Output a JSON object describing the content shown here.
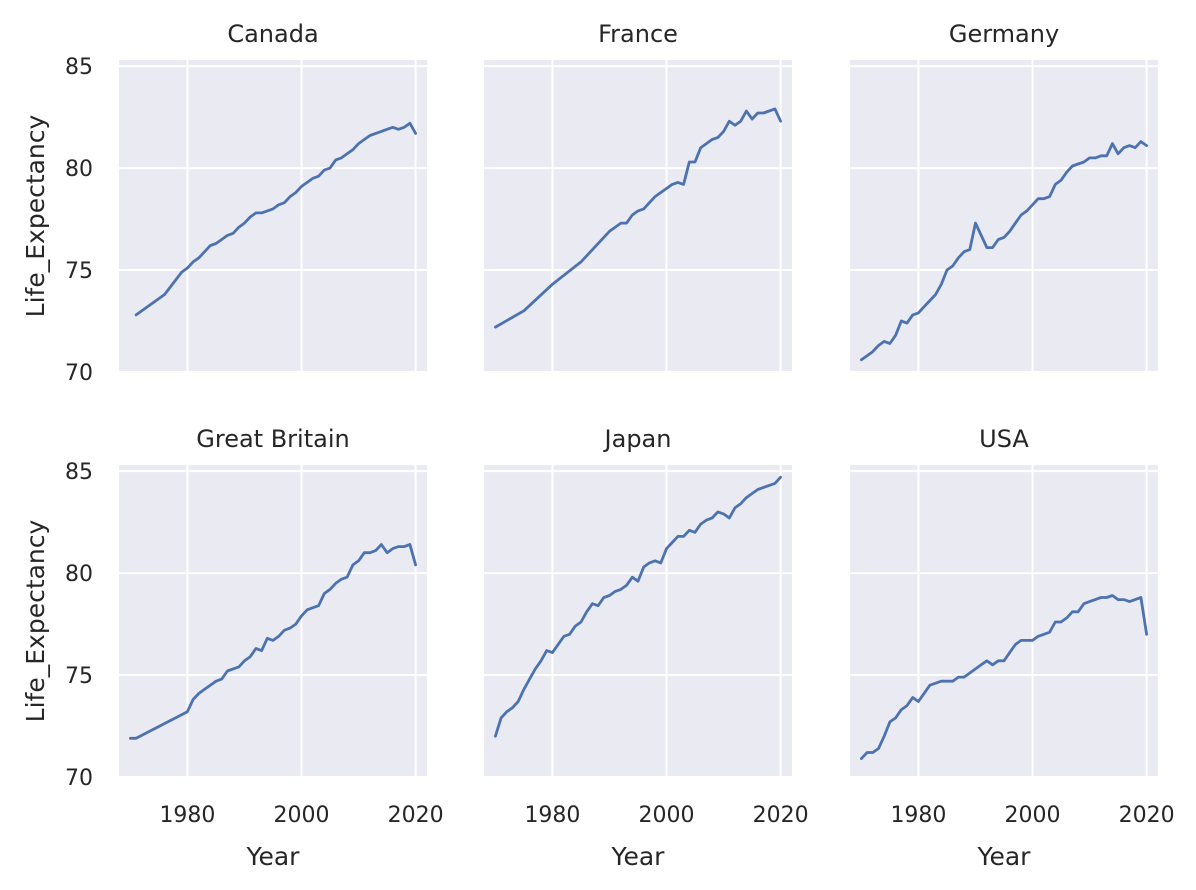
{
  "chart_data": {
    "type": "line",
    "layout": "facet-grid",
    "rows": 2,
    "cols": 3,
    "xlabel": "Year",
    "ylabel": "Life_Expectancy",
    "xticks": [
      1980,
      2000,
      2020
    ],
    "yticks": [
      70,
      75,
      80,
      85
    ],
    "xlim": [
      1968,
      2022
    ],
    "ylim": [
      70,
      85.3
    ],
    "grid": true,
    "colors": {
      "series": "#4c72b0",
      "panel_background": "#eaeaf2",
      "grid": "#ffffff"
    },
    "panels": [
      {
        "name": "Canada",
        "x": [
          1971,
          1976,
          1979,
          1980,
          1981,
          1982,
          1983,
          1984,
          1985,
          1986,
          1987,
          1988,
          1989,
          1990,
          1991,
          1992,
          1993,
          1994,
          1995,
          1996,
          1997,
          1998,
          1999,
          2000,
          2001,
          2002,
          2003,
          2004,
          2005,
          2006,
          2007,
          2008,
          2009,
          2010,
          2011,
          2012,
          2013,
          2014,
          2015,
          2016,
          2017,
          2018,
          2019,
          2020
        ],
        "y": [
          72.8,
          73.8,
          74.9,
          75.1,
          75.4,
          75.6,
          75.9,
          76.2,
          76.3,
          76.5,
          76.7,
          76.8,
          77.1,
          77.3,
          77.6,
          77.8,
          77.8,
          77.9,
          78.0,
          78.2,
          78.3,
          78.6,
          78.8,
          79.1,
          79.3,
          79.5,
          79.6,
          79.9,
          80.0,
          80.4,
          80.5,
          80.7,
          80.9,
          81.2,
          81.4,
          81.6,
          81.7,
          81.8,
          81.9,
          82.0,
          81.9,
          82.0,
          82.2,
          81.7
        ]
      },
      {
        "name": "France",
        "x": [
          1970,
          1975,
          1980,
          1985,
          1990,
          1991,
          1992,
          1993,
          1994,
          1995,
          1996,
          1997,
          1998,
          1999,
          2000,
          2001,
          2002,
          2003,
          2004,
          2005,
          2006,
          2007,
          2008,
          2009,
          2010,
          2011,
          2012,
          2013,
          2014,
          2015,
          2016,
          2017,
          2018,
          2019,
          2020
        ],
        "y": [
          72.2,
          73.0,
          74.3,
          75.4,
          76.9,
          77.1,
          77.3,
          77.3,
          77.7,
          77.9,
          78.0,
          78.3,
          78.6,
          78.8,
          79.0,
          79.2,
          79.3,
          79.2,
          80.3,
          80.3,
          81.0,
          81.2,
          81.4,
          81.5,
          81.8,
          82.3,
          82.1,
          82.3,
          82.8,
          82.4,
          82.7,
          82.7,
          82.8,
          82.9,
          82.3
        ]
      },
      {
        "name": "Germany",
        "x": [
          1970,
          1971,
          1972,
          1973,
          1974,
          1975,
          1976,
          1977,
          1978,
          1979,
          1980,
          1981,
          1982,
          1983,
          1984,
          1985,
          1986,
          1987,
          1988,
          1989,
          1990,
          1991,
          1992,
          1993,
          1994,
          1995,
          1996,
          1997,
          1998,
          1999,
          2000,
          2001,
          2002,
          2003,
          2004,
          2005,
          2006,
          2007,
          2008,
          2009,
          2010,
          2011,
          2012,
          2013,
          2014,
          2015,
          2016,
          2017,
          2018,
          2019,
          2020
        ],
        "y": [
          70.6,
          70.8,
          71.0,
          71.3,
          71.5,
          71.4,
          71.8,
          72.5,
          72.4,
          72.8,
          72.9,
          73.2,
          73.5,
          73.8,
          74.3,
          75.0,
          75.2,
          75.6,
          75.9,
          76.0,
          77.3,
          76.7,
          76.1,
          76.1,
          76.5,
          76.6,
          76.9,
          77.3,
          77.7,
          77.9,
          78.2,
          78.5,
          78.5,
          78.6,
          79.2,
          79.4,
          79.8,
          80.1,
          80.2,
          80.3,
          80.5,
          80.5,
          80.6,
          80.6,
          81.2,
          80.7,
          81.0,
          81.1,
          81.0,
          81.3,
          81.1
        ]
      },
      {
        "name": "Great Britain",
        "x": [
          1970,
          1971,
          1980,
          1981,
          1982,
          1983,
          1984,
          1985,
          1986,
          1987,
          1988,
          1989,
          1990,
          1991,
          1992,
          1993,
          1994,
          1995,
          1996,
          1997,
          1998,
          1999,
          2000,
          2001,
          2002,
          2003,
          2004,
          2005,
          2006,
          2007,
          2008,
          2009,
          2010,
          2011,
          2012,
          2013,
          2014,
          2015,
          2016,
          2017,
          2018,
          2019,
          2020
        ],
        "y": [
          71.9,
          71.9,
          73.2,
          73.8,
          74.1,
          74.3,
          74.5,
          74.7,
          74.8,
          75.2,
          75.3,
          75.4,
          75.7,
          75.9,
          76.3,
          76.2,
          76.8,
          76.7,
          76.9,
          77.2,
          77.3,
          77.5,
          77.9,
          78.2,
          78.3,
          78.4,
          79.0,
          79.2,
          79.5,
          79.7,
          79.8,
          80.4,
          80.6,
          81.0,
          81.0,
          81.1,
          81.4,
          81.0,
          81.2,
          81.3,
          81.3,
          81.4,
          80.4
        ]
      },
      {
        "name": "Japan",
        "x": [
          1970,
          1971,
          1972,
          1973,
          1974,
          1975,
          1976,
          1977,
          1978,
          1979,
          1980,
          1981,
          1982,
          1983,
          1984,
          1985,
          1986,
          1987,
          1988,
          1989,
          1990,
          1991,
          1992,
          1993,
          1994,
          1995,
          1996,
          1997,
          1998,
          1999,
          2000,
          2001,
          2002,
          2003,
          2004,
          2005,
          2006,
          2007,
          2008,
          2009,
          2010,
          2011,
          2012,
          2013,
          2014,
          2015,
          2016,
          2017,
          2018,
          2019,
          2020
        ],
        "y": [
          72.0,
          72.9,
          73.2,
          73.4,
          73.7,
          74.3,
          74.8,
          75.3,
          75.7,
          76.2,
          76.1,
          76.5,
          76.9,
          77.0,
          77.4,
          77.6,
          78.1,
          78.5,
          78.4,
          78.8,
          78.9,
          79.1,
          79.2,
          79.4,
          79.8,
          79.6,
          80.3,
          80.5,
          80.6,
          80.5,
          81.2,
          81.5,
          81.8,
          81.8,
          82.1,
          82.0,
          82.4,
          82.6,
          82.7,
          83.0,
          82.9,
          82.7,
          83.2,
          83.4,
          83.7,
          83.9,
          84.1,
          84.2,
          84.3,
          84.4,
          84.7
        ]
      },
      {
        "name": "USA",
        "x": [
          1970,
          1971,
          1972,
          1973,
          1974,
          1975,
          1976,
          1977,
          1978,
          1979,
          1980,
          1981,
          1982,
          1983,
          1984,
          1985,
          1986,
          1987,
          1988,
          1989,
          1990,
          1991,
          1992,
          1993,
          1994,
          1995,
          1996,
          1997,
          1998,
          1999,
          2000,
          2001,
          2002,
          2003,
          2004,
          2005,
          2006,
          2007,
          2008,
          2009,
          2010,
          2011,
          2012,
          2013,
          2014,
          2015,
          2016,
          2017,
          2018,
          2019,
          2020
        ],
        "y": [
          70.9,
          71.2,
          71.2,
          71.4,
          72.0,
          72.7,
          72.9,
          73.3,
          73.5,
          73.9,
          73.7,
          74.1,
          74.5,
          74.6,
          74.7,
          74.7,
          74.7,
          74.9,
          74.9,
          75.1,
          75.3,
          75.5,
          75.7,
          75.5,
          75.7,
          75.7,
          76.1,
          76.5,
          76.7,
          76.7,
          76.7,
          76.9,
          77.0,
          77.1,
          77.6,
          77.6,
          77.8,
          78.1,
          78.1,
          78.5,
          78.6,
          78.7,
          78.8,
          78.8,
          78.9,
          78.7,
          78.7,
          78.6,
          78.7,
          78.8,
          77.0
        ]
      }
    ]
  }
}
